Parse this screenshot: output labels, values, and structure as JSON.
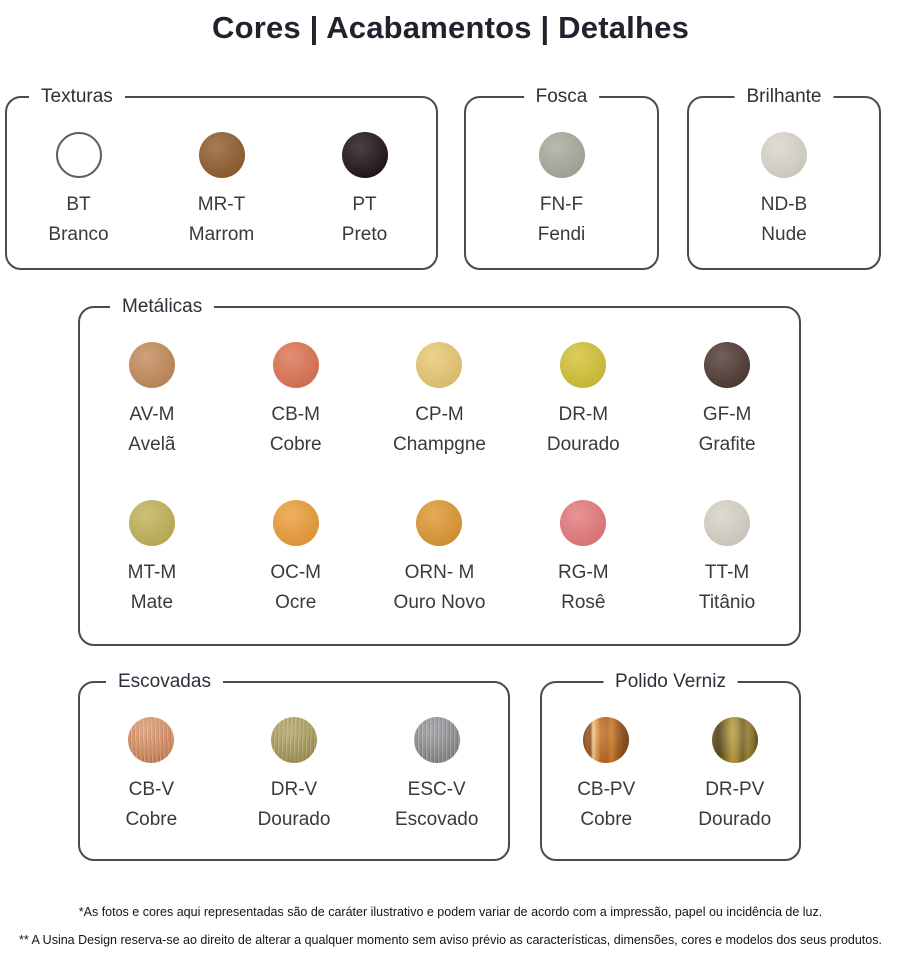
{
  "title": "Cores | Acabamentos | Detalhes",
  "groups": [
    {
      "label": "Texturas",
      "swatches": [
        {
          "code": "BT",
          "name": "Branco",
          "color": "#ffffff",
          "outlined": true
        },
        {
          "code": "MR-T",
          "name": "Marrom",
          "color": "#8f5c2d"
        },
        {
          "code": "PT",
          "name": "Preto",
          "color": "#1e1114"
        }
      ]
    },
    {
      "label": "Fosca",
      "swatches": [
        {
          "code": "FN-F",
          "name": "Fendi",
          "color": "#a8a99b"
        }
      ]
    },
    {
      "label": "Brilhante",
      "swatches": [
        {
          "code": "ND-B",
          "name": "Nude",
          "color": "#d9d5c9"
        }
      ]
    },
    {
      "label": "Metálicas",
      "swatches": [
        {
          "code": "AV-M",
          "name": "Avelã",
          "color": "#c28a58"
        },
        {
          "code": "CB-M",
          "name": "Cobre",
          "color": "#dc7251"
        },
        {
          "code": "CP-M",
          "name": "Champgne",
          "color": "#e7c76f"
        },
        {
          "code": "DR-M",
          "name": "Dourado",
          "color": "#d2c133"
        },
        {
          "code": "GF-M",
          "name": "Grafite",
          "color": "#4e3831"
        },
        {
          "code": "MT-M",
          "name": "Mate",
          "color": "#c0b156"
        },
        {
          "code": "OC-M",
          "name": "Ocre",
          "color": "#eb9c36"
        },
        {
          "code": "ORN- M",
          "name": "Ouro Novo",
          "color": "#dd9630"
        },
        {
          "code": "RG-M",
          "name": "Rosê",
          "color": "#e4787a"
        },
        {
          "code": "TT-M",
          "name": "Titânio",
          "color": "#d5d2c6"
        }
      ]
    },
    {
      "label": "Escovadas",
      "swatches": [
        {
          "code": "CB-V",
          "name": "Cobre",
          "color": "#d88d60",
          "bg": "repeating-linear-gradient(88deg, rgba(255,255,255,0.25) 0 1px, rgba(255,255,255,0) 1px 3px, rgba(120,60,20,0.18) 3px 4px), linear-gradient(180deg, #de9a6e, #d08154)"
        },
        {
          "code": "DR-V",
          "name": "Dourado",
          "color": "#ab9b58",
          "bg": "repeating-linear-gradient(92deg, rgba(255,255,255,0.22) 0 1px, rgba(255,255,255,0) 1px 3px, rgba(90,80,30,0.20) 3px 4px), linear-gradient(180deg, #b2a362, #a2924e)"
        },
        {
          "code": "ESC-V",
          "name": "Escovado",
          "color": "#8e9093",
          "bg": "repeating-linear-gradient(90deg, rgba(255,255,255,0.25) 0 1px, rgba(255,255,255,0) 1px 3px, rgba(40,40,45,0.18) 3px 4px), linear-gradient(180deg, #95979a, #85878a)"
        }
      ]
    },
    {
      "label": "Polido Verniz",
      "swatches": [
        {
          "code": "CB-PV",
          "name": "Cobre",
          "color": "#bc6a1e",
          "bg": "linear-gradient(90deg, #7e4217 0%, #a2571c 10%, #8f4c18 16%, #f2cd92 22%, #e9a558 27%, #c06a1e 38%, #b4631c 52%, #cf7c28 62%, #a65818 76%, #8a4a16 88%, #7a3f12 100%)"
        },
        {
          "code": "DR-PV",
          "name": "Dourado",
          "color": "#9a7f2c",
          "bg": "linear-gradient(90deg, #70581f 0%, #4e3d14 12%, #5f4c1a 20%, #8d7526 32%, #bb9837 44%, #a98d3a 54%, #77652a 66%, #9c8330 78%, #8a7428 88%, #5e4b1a 100%)"
        }
      ]
    }
  ],
  "footnotes": [
    "*As fotos e cores aqui representadas são de caráter ilustrativo e podem variar de acordo com a impressão, papel ou incidência de luz.",
    "** A Usina Design reserva-se ao direito de alterar a qualquer momento sem aviso prévio as características, dimensões, cores e modelos dos seus produtos."
  ]
}
